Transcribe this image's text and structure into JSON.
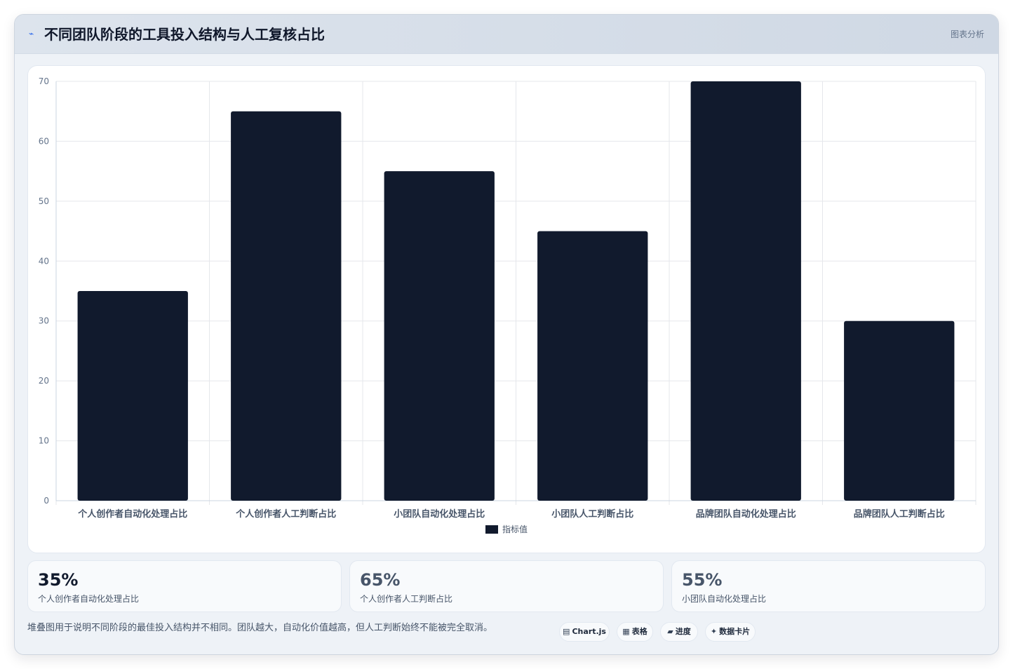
{
  "header": {
    "title": "不同团队阶段的工具投入结构与人工复核占比",
    "tag": "图表分析",
    "icon": "trend-line-icon"
  },
  "chart_data": {
    "type": "bar",
    "categories": [
      "个人创作者自动化处理占比",
      "个人创作者人工判断占比",
      "小团队自动化处理占比",
      "小团队人工判断占比",
      "品牌团队自动化处理占比",
      "品牌团队人工判断占比"
    ],
    "series": [
      {
        "name": "指标值",
        "values": [
          35,
          65,
          55,
          45,
          70,
          30
        ],
        "color": "#111a2d"
      }
    ],
    "ylim": [
      0,
      70
    ],
    "yticks": [
      0,
      10,
      20,
      30,
      40,
      50,
      60,
      70
    ],
    "grid": true,
    "legend": "bottom"
  },
  "stats": [
    {
      "value": "35%",
      "label": "个人创作者自动化处理占比",
      "color": "#111a2d"
    },
    {
      "value": "65%",
      "label": "个人创作者人工判断占比",
      "color": "#475569"
    },
    {
      "value": "55%",
      "label": "小团队自动化处理占比",
      "color": "#475569"
    }
  ],
  "note": "堆叠图用于说明不同阶段的最佳投入结构并不相同。团队越大，自动化价值越高，但人工判断始终不能被完全取消。",
  "pills": [
    {
      "icon": "▤",
      "label": "Chart.js"
    },
    {
      "icon": "▦",
      "label": "表格"
    },
    {
      "icon": "▰",
      "label": "进度"
    },
    {
      "icon": "✦",
      "label": "数据卡片"
    }
  ]
}
